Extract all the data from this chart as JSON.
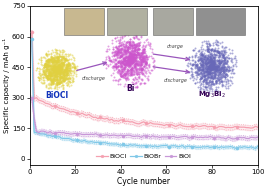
{
  "xlabel": "Cycle number",
  "ylabel": "Specific capacity / mAh g⁻¹",
  "xlim": [
    0,
    100
  ],
  "ylim": [
    -30,
    750
  ],
  "yticks": [
    0,
    150,
    300,
    450,
    600,
    750
  ],
  "xticks": [
    0,
    20,
    40,
    60,
    80,
    100
  ],
  "BiOCl_color": "#f5a0b0",
  "BiOBr_color": "#80c8e8",
  "BiOI_color": "#c898d8",
  "ball_BiOCl_color": "#e0d040",
  "ball_Bi_color": "#cc55cc",
  "ball_Mg3Bi2_color": "#6868b8",
  "arrow_color": "#9955bb",
  "label_color": "#1133bb",
  "bg_color": "#ffffff",
  "legend_labels": [
    "BiOCl",
    "BiOBr",
    "BiOI"
  ],
  "BiOCl_init": 620,
  "BiOCl_drop": 295,
  "BiOCl_stable": 148,
  "BiOBr_init": 590,
  "BiOBr_drop": 130,
  "BiOBr_stable": 55,
  "BiOI_init": 300,
  "BiOI_drop2": 135,
  "BiOI_stable": 100
}
